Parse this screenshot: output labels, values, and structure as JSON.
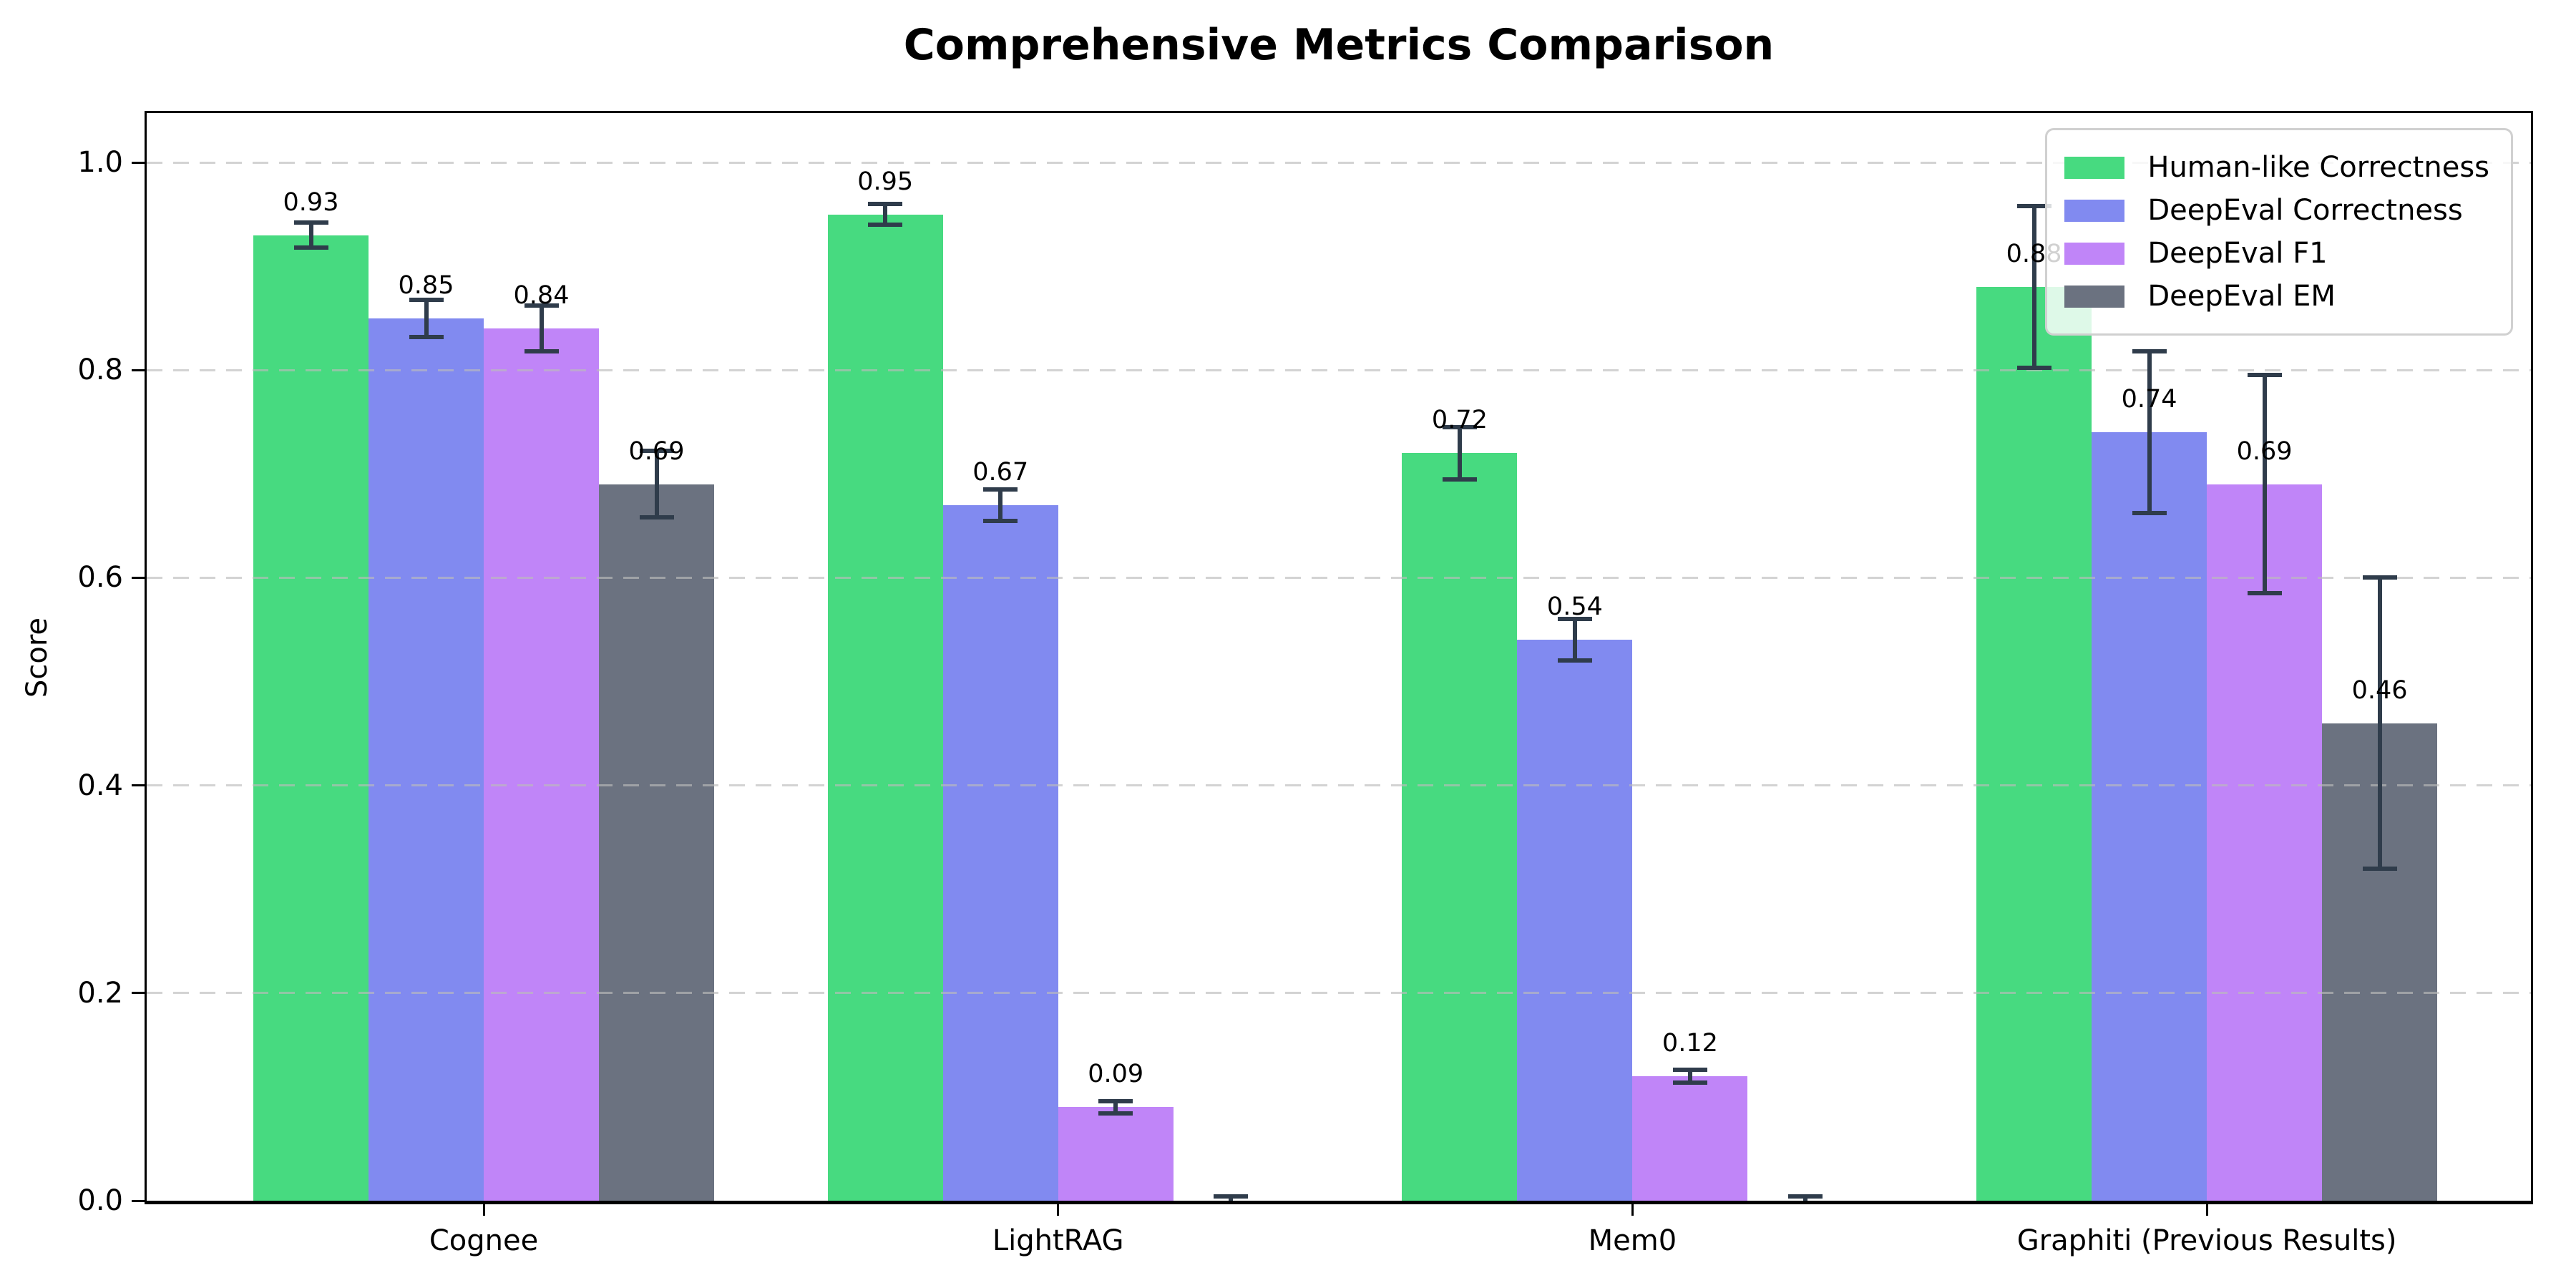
{
  "title": "Comprehensive Metrics Comparison",
  "chart_data": {
    "type": "bar",
    "title": "Comprehensive Metrics Comparison",
    "ylabel": "Score",
    "xlabel": "",
    "categories": [
      "Cognee",
      "LightRAG",
      "Mem0",
      "Graphiti (Previous Results)"
    ],
    "series": [
      {
        "name": "Human-like Correctness",
        "color": "#47da80",
        "values": [
          0.93,
          0.95,
          0.72,
          0.88
        ],
        "errors": [
          0.012,
          0.01,
          0.025,
          0.078
        ],
        "labels": [
          "0.93",
          "0.95",
          "0.72",
          "0.88"
        ]
      },
      {
        "name": "DeepEval Correctness",
        "color": "#818af0",
        "values": [
          0.85,
          0.67,
          0.54,
          0.74
        ],
        "errors": [
          0.018,
          0.015,
          0.02,
          0.078
        ],
        "labels": [
          "0.85",
          "0.67",
          "0.54",
          "0.74"
        ]
      },
      {
        "name": "DeepEval F1",
        "color": "#c085f8",
        "values": [
          0.84,
          0.09,
          0.12,
          0.69
        ],
        "errors": [
          0.022,
          0.006,
          0.006,
          0.105
        ],
        "labels": [
          "0.84",
          "0.09",
          "0.12",
          "0.69"
        ]
      },
      {
        "name": "DeepEval EM",
        "color": "#6b7280",
        "values": [
          0.69,
          0.0,
          0.0,
          0.46
        ],
        "errors": [
          0.032,
          0.004,
          0.004,
          0.14
        ],
        "labels": [
          "0.69",
          "",
          "",
          "0.46"
        ]
      }
    ],
    "yticks": [
      {
        "value": 0.0,
        "label": "0.0"
      },
      {
        "value": 0.2,
        "label": "0.2"
      },
      {
        "value": 0.4,
        "label": "0.4"
      },
      {
        "value": 0.6,
        "label": "0.6"
      },
      {
        "value": 0.8,
        "label": "0.8"
      },
      {
        "value": 1.0,
        "label": "1.0"
      }
    ],
    "ylim": [
      0.0,
      1.053
    ],
    "grid": true,
    "grid_style": "dashed-horizontal-over-bars",
    "legend_position": "upper right",
    "error_bar_color": "#2f3c4b",
    "value_label_color": "#000000"
  }
}
